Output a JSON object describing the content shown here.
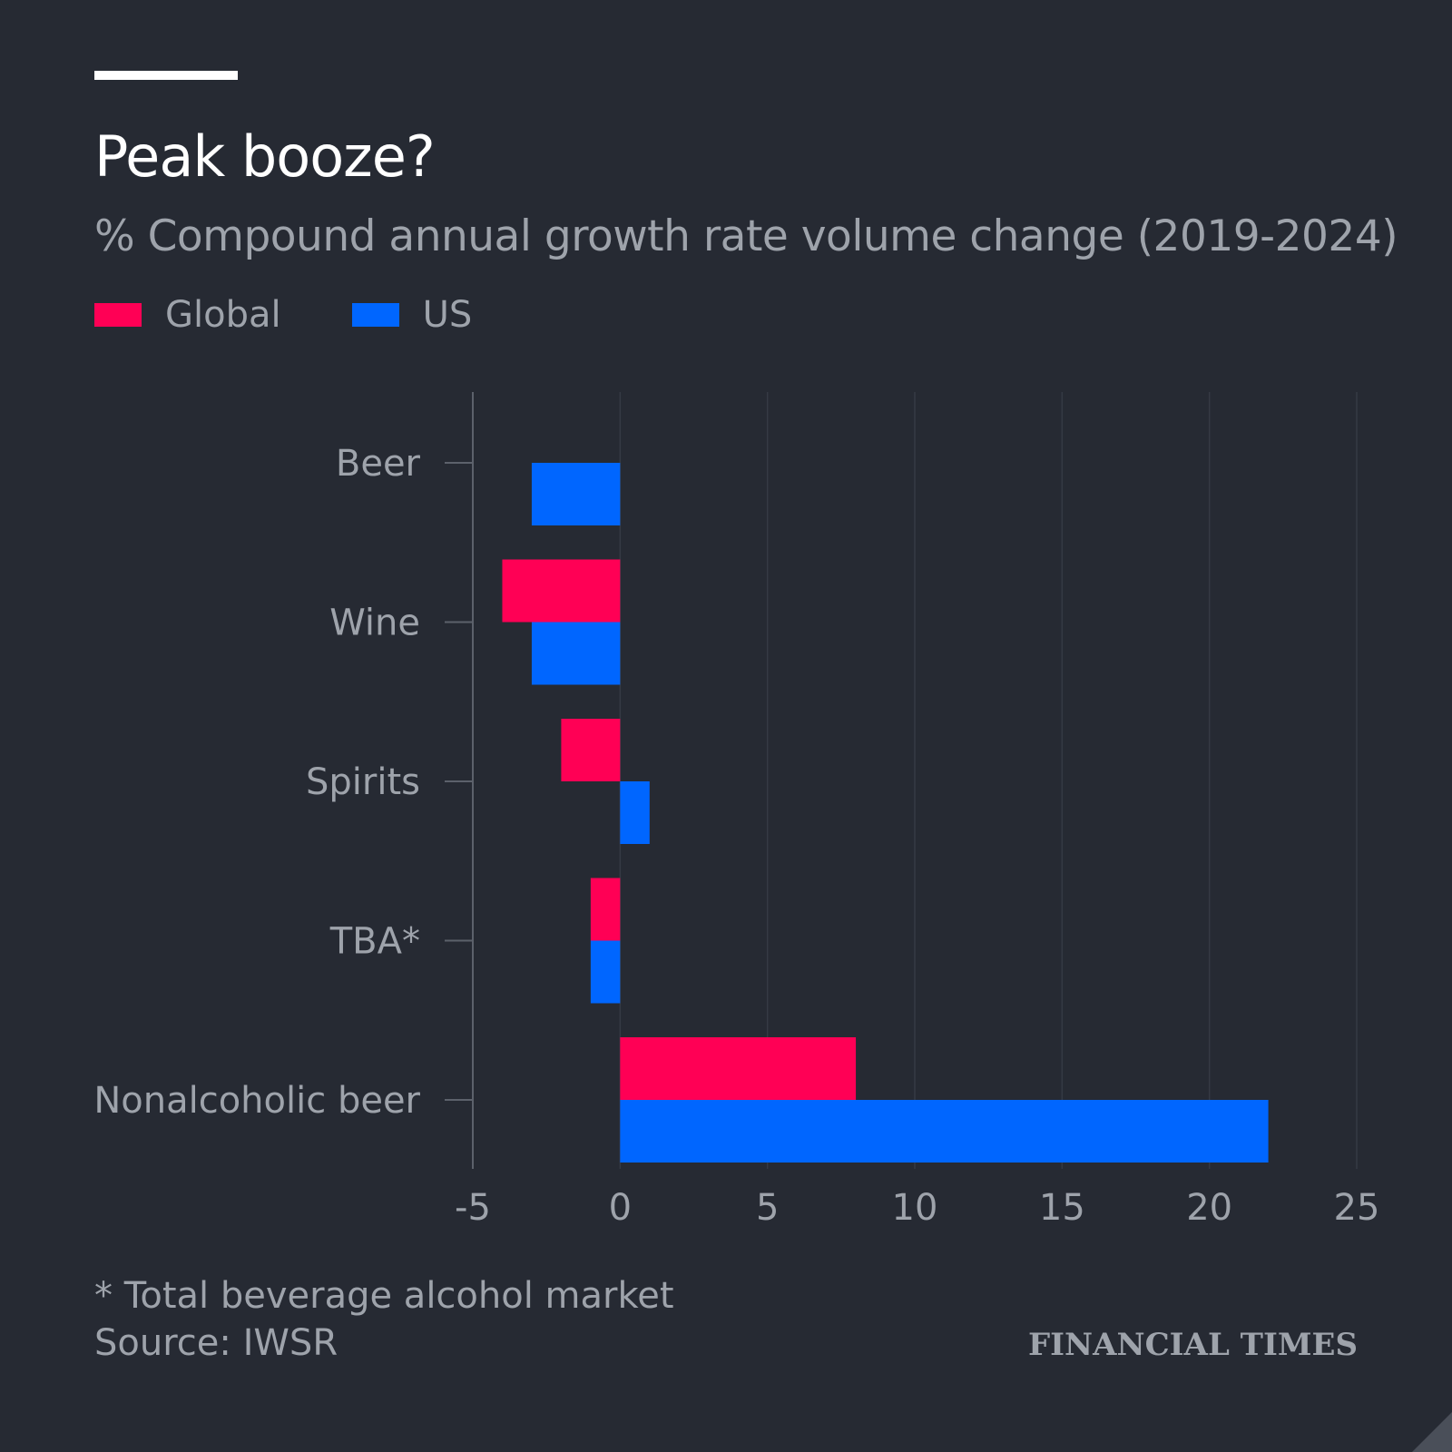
{
  "header": {
    "title": "Peak booze?",
    "subtitle": "% Compound annual growth rate volume change (2019-2024)"
  },
  "legend": [
    {
      "label": "Global",
      "color": "#ff0055"
    },
    {
      "label": "US",
      "color": "#0066ff"
    }
  ],
  "chart_data": {
    "type": "bar",
    "orientation": "horizontal",
    "categories": [
      "Beer",
      "Wine",
      "Spirits",
      "TBA*",
      "Nonalcoholic beer"
    ],
    "series": [
      {
        "name": "Global",
        "color": "#ff0055",
        "values": [
          0,
          -4,
          -2,
          -1,
          8
        ]
      },
      {
        "name": "US",
        "color": "#0066ff",
        "values": [
          -3,
          -3,
          1,
          -1,
          22
        ]
      }
    ],
    "xlim": [
      -5,
      25
    ],
    "xticks": [
      "-5",
      "0",
      "5",
      "10",
      "15",
      "20",
      "25"
    ],
    "xtick_values": [
      -5,
      0,
      5,
      10,
      15,
      20,
      25
    ],
    "grid": true,
    "legend_position": "top-left"
  },
  "footer": {
    "note": "* Total beverage alcohol market",
    "source": "Source: IWSR",
    "logo": "FINANCIAL TIMES"
  }
}
